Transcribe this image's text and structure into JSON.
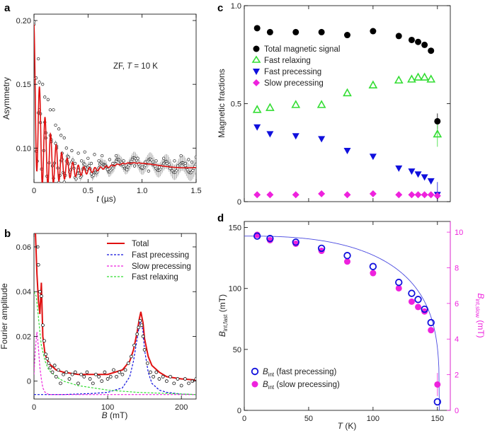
{
  "colors": {
    "red": "#e01010",
    "black": "#000000",
    "green": "#33dd33",
    "blue": "#1010dd",
    "magenta": "#ee22dd",
    "fit_blue": "#4a4ae0",
    "grey": "#aaaaaa"
  },
  "chart_data": [
    {
      "id": "a",
      "panel_label": "a",
      "type": "scatter",
      "title": "",
      "annotation": "ZF, T = 10 K",
      "annotation_parts": [
        "ZF, ",
        "T",
        " = 10 K"
      ],
      "xlabel": "t (µs)",
      "xlabel_parts": [
        "t",
        " (µs)"
      ],
      "ylabel": "Asymmetry",
      "xlim": [
        0,
        1.5
      ],
      "ylim": [
        0.073,
        0.205
      ],
      "xticks": [
        0,
        0.5,
        1.0,
        1.5
      ],
      "xtick_labels": [
        "0",
        "0.5",
        "1.0",
        "1.5"
      ],
      "yticks": [
        0.1,
        0.15,
        0.2
      ],
      "ytick_labels": [
        "0.10",
        "0.15",
        "0.20"
      ],
      "fit_model": {
        "name": "Total fit",
        "baseline": 0.086,
        "fast_relaxing": {
          "amplitude": 0.055,
          "rate_per_us": 20.0
        },
        "oscillation": {
          "amplitude": 0.05,
          "frequency_MHz": 19.5,
          "damping_per_us": 6.0
        },
        "slow_component": {
          "amplitude": 0.018,
          "rate_per_us": 0.6
        },
        "slow_oscillation": {
          "amplitude": 0.006,
          "frequency_MHz": 1.05
        }
      },
      "series": [
        {
          "name": "data",
          "x": [
            0.0,
            0.02,
            0.04,
            0.05,
            0.06,
            0.08,
            0.1,
            0.11,
            0.13,
            0.15,
            0.16,
            0.18,
            0.2,
            0.21,
            0.23,
            0.25,
            0.26,
            0.28,
            0.3,
            0.32,
            0.35,
            0.38,
            0.41,
            0.44,
            0.47,
            0.5,
            0.53,
            0.56,
            0.6,
            0.63,
            0.66,
            0.7,
            0.73,
            0.76,
            0.8,
            0.83,
            0.86,
            0.9,
            0.93,
            0.96,
            1.0,
            1.03,
            1.06,
            1.1,
            1.13,
            1.16,
            1.2,
            1.23,
            1.26,
            1.3,
            1.33,
            1.36,
            1.4,
            1.43,
            1.46,
            1.5
          ],
          "y": [
            0.199,
            0.155,
            0.17,
            0.13,
            0.12,
            0.15,
            0.14,
            0.112,
            0.138,
            0.13,
            0.105,
            0.13,
            0.118,
            0.1,
            0.115,
            0.11,
            0.096,
            0.108,
            0.1,
            0.093,
            0.098,
            0.088,
            0.096,
            0.09,
            0.097,
            0.092,
            0.088,
            0.095,
            0.09,
            0.094,
            0.086,
            0.091,
            0.088,
            0.094,
            0.087,
            0.09,
            0.083,
            0.088,
            0.086,
            0.092,
            0.085,
            0.089,
            0.082,
            0.087,
            0.09,
            0.085,
            0.092,
            0.088,
            0.084,
            0.09,
            0.086,
            0.094,
            0.088,
            0.091,
            0.089,
            0.093
          ]
        }
      ]
    },
    {
      "id": "b",
      "panel_label": "b",
      "type": "line",
      "title": "",
      "xlabel": "B (mT)",
      "xlabel_parts": [
        "B",
        " (mT)"
      ],
      "ylabel": "Fourier amplitude",
      "xlim": [
        0,
        220
      ],
      "ylim": [
        -0.008,
        0.066
      ],
      "xticks": [
        0,
        100,
        200
      ],
      "xtick_labels": [
        "0",
        "100",
        "200"
      ],
      "yticks": [
        0,
        0.02,
        0.04,
        0.06
      ],
      "ytick_labels": [
        "0",
        "0.02",
        "0.04",
        "0.06"
      ],
      "legend": [
        "Total",
        "Fast precessing",
        "Slow precessing",
        "Fast relaxing"
      ],
      "legend_position": "top-right",
      "series": [
        {
          "name": "Total",
          "style": "solid",
          "color": "#e01010",
          "x": [
            2,
            4,
            6,
            8,
            10,
            12,
            15,
            20,
            30,
            40,
            60,
            80,
            100,
            120,
            130,
            135,
            140,
            143,
            145,
            148,
            150,
            155,
            160,
            170,
            180,
            200,
            220
          ],
          "y": [
            0.066,
            0.048,
            0.036,
            0.03,
            0.044,
            0.02,
            0.012,
            0.008,
            0.005,
            0.004,
            0.003,
            0.003,
            0.003,
            0.005,
            0.009,
            0.014,
            0.022,
            0.028,
            0.031,
            0.026,
            0.019,
            0.011,
            0.007,
            0.004,
            0.002,
            0.001,
            0.0005
          ]
        },
        {
          "name": "Fast precessing",
          "style": "dashed",
          "color": "#1010dd",
          "x": [
            0,
            40,
            80,
            100,
            120,
            130,
            135,
            140,
            143,
            145,
            148,
            150,
            155,
            160,
            170,
            180,
            200,
            220
          ],
          "y": [
            -0.006,
            -0.006,
            -0.0055,
            -0.005,
            -0.003,
            0.002,
            0.009,
            0.019,
            0.025,
            0.027,
            0.022,
            0.014,
            0.004,
            -0.001,
            -0.004,
            -0.005,
            -0.0058,
            -0.006
          ]
        },
        {
          "name": "Slow precessing",
          "style": "dashed",
          "color": "#ee22dd",
          "x": [
            0,
            2,
            4,
            6,
            8,
            10,
            12,
            15,
            20,
            30,
            50,
            100,
            150,
            220
          ],
          "y": [
            0.003,
            0.015,
            0.022,
            0.015,
            0.006,
            0.001,
            -0.003,
            -0.005,
            -0.006,
            -0.006,
            -0.006,
            -0.006,
            -0.006,
            -0.006
          ]
        },
        {
          "name": "Fast relaxing",
          "style": "dashed",
          "color": "#33dd33",
          "x": [
            0,
            3,
            5,
            8,
            10,
            15,
            20,
            30,
            40,
            60,
            80,
            100,
            140,
            180,
            220
          ],
          "y": [
            0.04,
            0.038,
            0.032,
            0.022,
            0.016,
            0.009,
            0.005,
            0.002,
            0.0,
            -0.002,
            -0.003,
            -0.004,
            -0.005,
            -0.0055,
            -0.006
          ]
        },
        {
          "name": "data",
          "x": [
            5,
            6,
            8,
            10,
            12,
            14,
            16,
            18,
            20,
            22,
            25,
            28,
            30,
            33,
            36,
            40,
            44,
            48,
            52,
            56,
            60,
            64,
            68,
            72,
            76,
            80,
            84,
            88,
            92,
            96,
            100,
            104,
            108,
            112,
            116,
            120,
            124,
            128,
            132,
            136,
            140,
            142,
            144,
            146,
            148,
            150,
            154,
            158,
            162,
            166,
            170,
            175,
            180,
            185,
            190,
            195,
            200,
            205,
            210,
            215,
            220
          ],
          "y": [
            0.06,
            0.052,
            0.04,
            0.038,
            0.025,
            0.018,
            0.012,
            0.01,
            0.008,
            0.006,
            0.004,
            0.007,
            0.002,
            0.005,
            -0.001,
            0.003,
            0.004,
            0.001,
            0.003,
            0.004,
            -0.001,
            0.003,
            0.002,
            0.004,
            0.001,
            -0.001,
            0.003,
            0.002,
            0.0,
            0.004,
            0.001,
            0.002,
            0.005,
            0.002,
            0.004,
            0.003,
            0.005,
            0.008,
            0.011,
            0.016,
            0.021,
            0.024,
            0.027,
            0.025,
            0.02,
            0.014,
            0.008,
            0.004,
            0.002,
            0.004,
            0.001,
            0.002,
            0.0,
            0.002,
            -0.001,
            0.001,
            -0.002,
            0.001,
            -0.001,
            0.0,
            0.001
          ]
        }
      ]
    },
    {
      "id": "c",
      "panel_label": "c",
      "type": "scatter",
      "title": "",
      "xlabel": "",
      "ylabel": "Magnetic fractions",
      "xlim": [
        0,
        160
      ],
      "ylim": [
        0,
        1.0
      ],
      "xticks": [
        0,
        50,
        100,
        150
      ],
      "xtick_labels": [],
      "yticks": [
        0,
        0.5,
        1.0
      ],
      "ytick_labels": [
        "0",
        "0.5",
        "1.0"
      ],
      "legend": [
        "Total magnetic signal",
        "Fast relaxing",
        "Fast precessing",
        "Slow precessing"
      ],
      "legend_position": "top-left",
      "series": [
        {
          "name": "Total magnetic signal",
          "marker": "circle-filled",
          "color": "#000000",
          "x": [
            10,
            20,
            40,
            60,
            80,
            100,
            120,
            130,
            135,
            140,
            145,
            150
          ],
          "y": [
            0.885,
            0.865,
            0.865,
            0.865,
            0.85,
            0.87,
            0.845,
            0.825,
            0.815,
            0.8,
            0.77,
            0.41
          ]
        },
        {
          "name": "Fast relaxing",
          "marker": "triangle-up-open",
          "color": "#33dd33",
          "x": [
            10,
            20,
            40,
            60,
            80,
            100,
            120,
            130,
            135,
            140,
            145,
            150
          ],
          "y": [
            0.47,
            0.48,
            0.495,
            0.495,
            0.555,
            0.595,
            0.62,
            0.625,
            0.635,
            0.635,
            0.625,
            0.345
          ]
        },
        {
          "name": "Fast precessing",
          "marker": "triangle-down-filled",
          "color": "#1010dd",
          "x": [
            10,
            20,
            40,
            60,
            80,
            100,
            120,
            130,
            135,
            140,
            145,
            150
          ],
          "y": [
            0.38,
            0.345,
            0.335,
            0.32,
            0.26,
            0.23,
            0.17,
            0.155,
            0.14,
            0.125,
            0.105,
            0.035
          ]
        },
        {
          "name": "Slow precessing",
          "marker": "diamond-filled",
          "color": "#ee22dd",
          "x": [
            10,
            20,
            40,
            60,
            80,
            100,
            120,
            130,
            135,
            140,
            145,
            150
          ],
          "y": [
            0.035,
            0.035,
            0.035,
            0.04,
            0.035,
            0.04,
            0.035,
            0.035,
            0.035,
            0.035,
            0.035,
            0.03
          ]
        }
      ]
    },
    {
      "id": "d",
      "panel_label": "d",
      "type": "scatter",
      "title": "",
      "xlabel": "T (K)",
      "xlabel_parts": [
        "T",
        " (K)"
      ],
      "ylabel": "B_int,fast (mT)",
      "ylabel_parts": [
        "B",
        "int,fast",
        " (mT)"
      ],
      "ylabel_right": "B_int,slow (mT)",
      "ylabel_right_parts": [
        "B",
        "int,slow",
        " (mT)"
      ],
      "xlim": [
        0,
        160
      ],
      "ylim": [
        0,
        155
      ],
      "ylim_right": [
        0,
        10.6
      ],
      "xticks": [
        0,
        50,
        100,
        150
      ],
      "xtick_labels": [
        "0",
        "50",
        "100",
        "150"
      ],
      "yticks": [
        0,
        50,
        100,
        150
      ],
      "ytick_labels": [
        "0",
        "50",
        "100",
        "150"
      ],
      "yticks_right": [
        0,
        2,
        4,
        6,
        8,
        10
      ],
      "ytick_labels_right": [
        "0",
        "2",
        "4",
        "6",
        "8",
        "10"
      ],
      "legend": [
        "B_int (fast precessing)",
        "B_int (slow precessing)"
      ],
      "legend_parts": [
        [
          "B",
          "int",
          " (fast precessing)"
        ],
        [
          "B",
          "int",
          " (slow precessing)"
        ]
      ],
      "legend_position": "bottom-left",
      "fit_model": {
        "name": "order-parameter fit",
        "B0_mT": 143,
        "Tc_K": 151.5,
        "alpha": 2.6,
        "beta": 0.28
      },
      "series": [
        {
          "name": "B_int (fast precessing)",
          "marker": "circle-open",
          "color": "#1010dd",
          "axis": "left",
          "x": [
            10,
            20,
            40,
            60,
            80,
            100,
            120,
            130,
            135,
            140,
            145,
            150
          ],
          "y": [
            143,
            141,
            138,
            133,
            127,
            118,
            105,
            96,
            91,
            83,
            72,
            7
          ]
        },
        {
          "name": "B_int (slow precessing)",
          "marker": "circle-filled",
          "color": "#ee22dd",
          "axis": "right",
          "x": [
            10,
            20,
            40,
            60,
            80,
            100,
            120,
            130,
            135,
            140,
            145,
            150
          ],
          "y": [
            9.85,
            9.55,
            9.35,
            8.95,
            8.35,
            7.7,
            6.85,
            6.1,
            5.8,
            5.55,
            4.5,
            1.45
          ]
        }
      ]
    }
  ]
}
